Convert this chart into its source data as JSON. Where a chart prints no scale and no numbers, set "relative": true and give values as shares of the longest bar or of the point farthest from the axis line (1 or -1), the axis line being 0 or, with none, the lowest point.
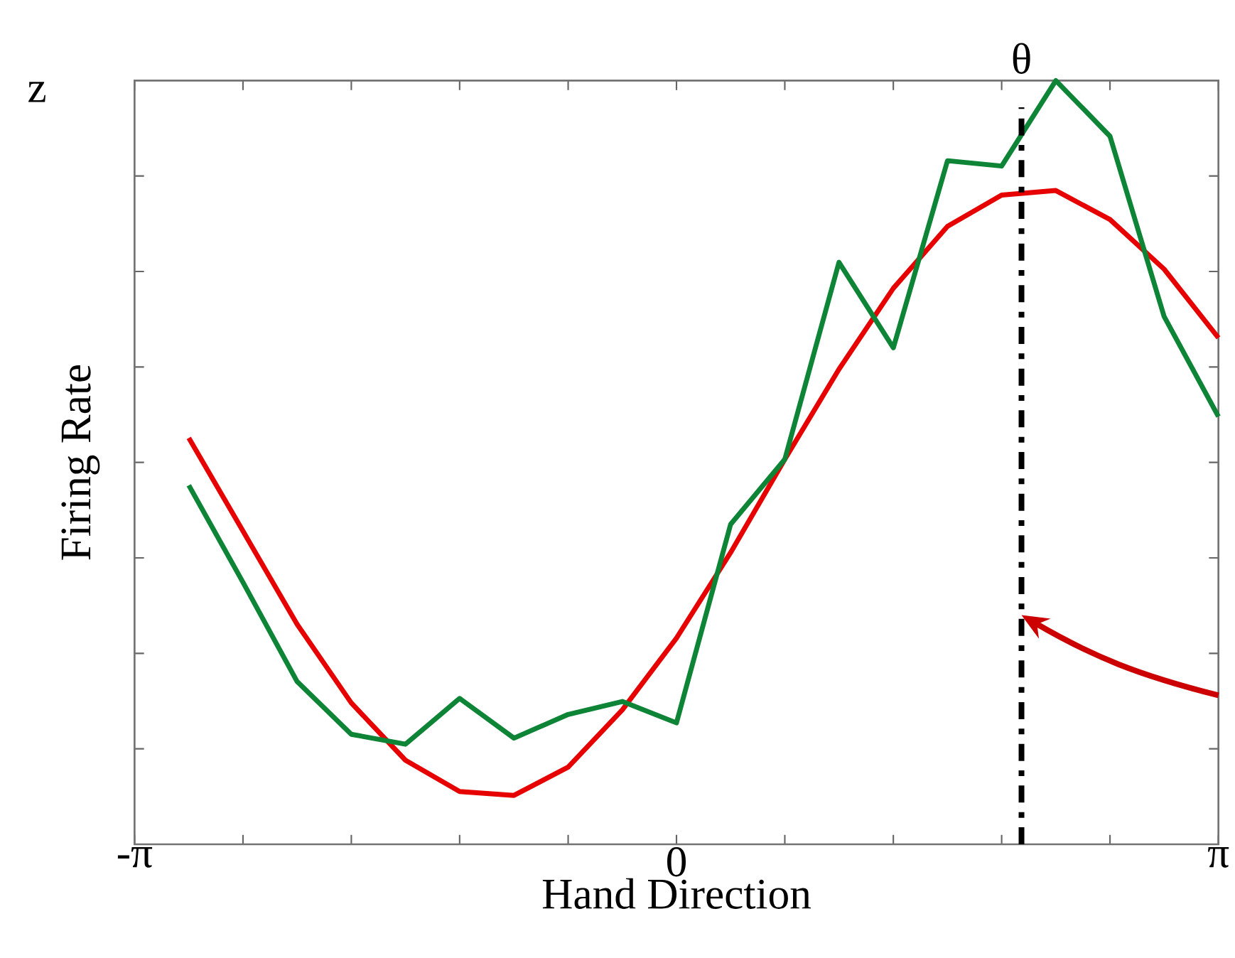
{
  "chart_data": {
    "type": "line",
    "relative": true,
    "xlabel": "Hand Direction",
    "ylabel": "Firing Rate",
    "x": [
      -2.827,
      -2.513,
      -2.199,
      -1.885,
      -1.571,
      -1.257,
      -0.942,
      -0.628,
      -0.314,
      0,
      0.314,
      0.628,
      0.942,
      1.257,
      1.571,
      1.885,
      2.199,
      2.513,
      2.827,
      3.1416
    ],
    "series": [
      {
        "color": "#e60000",
        "values": [
          0.532,
          0.41,
          0.288,
          0.185,
          0.11,
          0.069,
          0.064,
          0.101,
          0.176,
          0.27,
          0.382,
          0.504,
          0.622,
          0.728,
          0.809,
          0.85,
          0.856,
          0.818,
          0.753,
          0.663
        ]
      },
      {
        "color": "#0e8436",
        "values": [
          0.47,
          0.343,
          0.213,
          0.144,
          0.131,
          0.191,
          0.139,
          0.17,
          0.187,
          0.159,
          0.419,
          0.504,
          0.762,
          0.65,
          0.895,
          0.888,
          1.0,
          0.927,
          0.691,
          0.56
        ]
      }
    ],
    "xlim": [
      -3.1416,
      3.1416
    ],
    "xticks": [
      {
        "value": -3.1416,
        "label": "-π"
      },
      {
        "value": -2.513,
        "label": null
      },
      {
        "value": -1.885,
        "label": null
      },
      {
        "value": -1.257,
        "label": null
      },
      {
        "value": -0.628,
        "label": null
      },
      0,
      {
        "value": 0.628,
        "label": null
      },
      {
        "value": 1.257,
        "label": null
      },
      {
        "value": 1.885,
        "label": null
      },
      {
        "value": 2.513,
        "label": null
      },
      {
        "value": 3.1416,
        "label": "π"
      }
    ],
    "ref_lines": [
      {
        "axis": "x",
        "value": 2.0,
        "label": "θ",
        "color": "#000000",
        "line_style": "dashdot"
      }
    ],
    "annotations": [
      "z"
    ],
    "line_style": "solid",
    "marker": "none",
    "grid": false
  }
}
